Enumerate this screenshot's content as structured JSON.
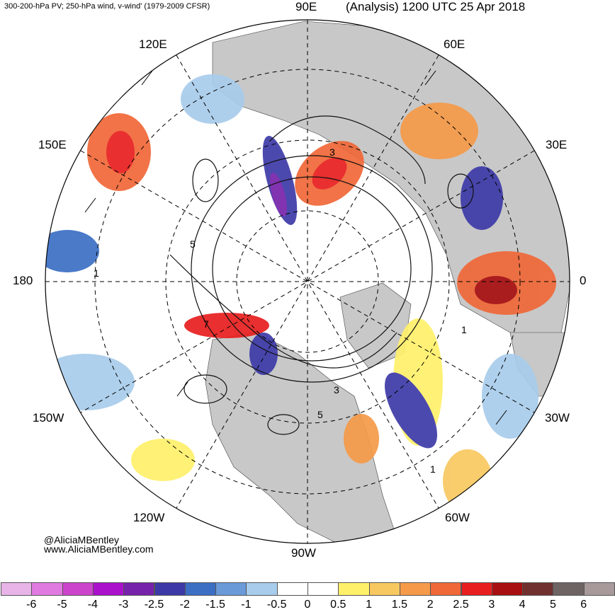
{
  "header": {
    "subtitle": "300-200-hPa PV; 250-hPa wind, v-wind' (1979-2009 CFSR)",
    "title": "(Analysis) 1200 UTC 25 Apr 2018"
  },
  "map": {
    "projection": "north-polar-stereographic",
    "longitude_labels": {
      "e90": "90E",
      "e60": "60E",
      "e120": "120E",
      "e150": "150E",
      "e30": "30E",
      "lon180": "180",
      "lon0": "0",
      "w150": "150W",
      "w30": "30W",
      "w120": "120W",
      "w60": "60W",
      "w90": "90W"
    },
    "contour_labels": {
      "c1": "1",
      "c5": "5",
      "c7": "7",
      "c3": "3",
      "c5b": "5",
      "c1b": "1",
      "c1c": "1",
      "c3b": "3"
    },
    "colors": {
      "land": "#c8c8c8",
      "grid": "#000000"
    }
  },
  "credits": {
    "handle": "@AliciaMBentley",
    "website": "www.AliciaMBentley.com"
  },
  "colorbar": {
    "ticks": [
      "-6",
      "-5",
      "-4",
      "-3",
      "-2.5",
      "-2",
      "-1.5",
      "-1",
      "-0.5",
      "0",
      "0.5",
      "1",
      "1.5",
      "2",
      "2.5",
      "3",
      "4",
      "5",
      "6"
    ],
    "colors": [
      "#e8b4e8",
      "#e07ae0",
      "#cc44cc",
      "#aa11cc",
      "#7722aa",
      "#3d3aa8",
      "#3b6fc4",
      "#6a9ad8",
      "#a8cceb",
      "#ffffff",
      "#ffffff",
      "#fff06a",
      "#f8c860",
      "#f59a48",
      "#f06838",
      "#e81e1e",
      "#a80f10",
      "#703030",
      "#6e6464",
      "#a89a9a"
    ]
  }
}
